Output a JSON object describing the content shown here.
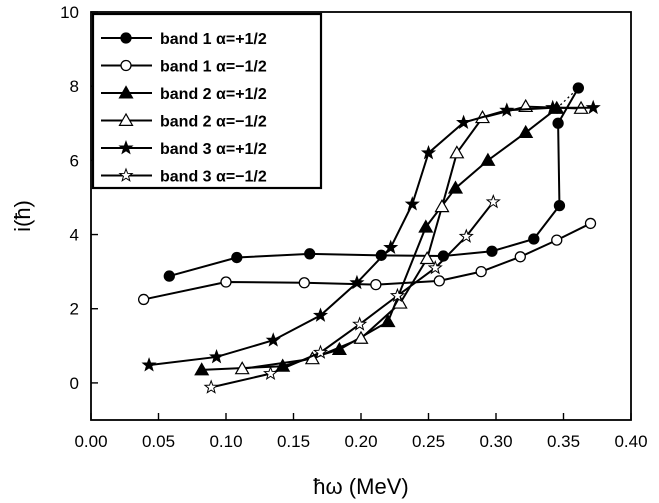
{
  "chart_data": {
    "type": "line",
    "xlabel": "ħω (MeV)",
    "ylabel": "i(ħ)",
    "xlim": [
      0.0,
      0.4
    ],
    "ylim": [
      -1,
      10
    ],
    "xticks": [
      "0.00",
      "0.05",
      "0.10",
      "0.15",
      "0.20",
      "0.25",
      "0.30",
      "0.35",
      "0.40"
    ],
    "yticks": [
      "0",
      "2",
      "4",
      "6",
      "8",
      "10"
    ],
    "legend_position": "top-left",
    "series": [
      {
        "name": "band 1 α=+1/2",
        "marker": "filled-circle",
        "points": [
          [
            0.058,
            2.88
          ],
          [
            0.108,
            3.38
          ],
          [
            0.162,
            3.48
          ],
          [
            0.215,
            3.44
          ],
          [
            0.261,
            3.42
          ],
          [
            0.297,
            3.55
          ],
          [
            0.328,
            3.88
          ],
          [
            0.347,
            4.78
          ],
          [
            0.346,
            7.0
          ],
          [
            0.361,
            7.95
          ]
        ]
      },
      {
        "name": "band 1 α=−1/2",
        "marker": "open-circle",
        "points": [
          [
            0.039,
            2.25
          ],
          [
            0.1,
            2.72
          ],
          [
            0.158,
            2.7
          ],
          [
            0.211,
            2.65
          ],
          [
            0.258,
            2.75
          ],
          [
            0.289,
            3.0
          ],
          [
            0.318,
            3.4
          ],
          [
            0.345,
            3.85
          ],
          [
            0.37,
            4.3
          ]
        ]
      },
      {
        "name": "band 2 α=+1/2",
        "marker": "filled-triangle",
        "points": [
          [
            0.082,
            0.35
          ],
          [
            0.142,
            0.45
          ],
          [
            0.184,
            0.9
          ],
          [
            0.22,
            1.65
          ],
          [
            0.248,
            4.2
          ],
          [
            0.27,
            5.25
          ],
          [
            0.294,
            6.0
          ],
          [
            0.322,
            6.75
          ],
          [
            0.345,
            7.4
          ]
        ]
      },
      {
        "name": "band 2 α=−1/2",
        "marker": "open-triangle",
        "points": [
          [
            0.112,
            0.38
          ],
          [
            0.164,
            0.65
          ],
          [
            0.2,
            1.2
          ],
          [
            0.229,
            2.15
          ],
          [
            0.249,
            3.35
          ],
          [
            0.26,
            4.75
          ],
          [
            0.271,
            6.2
          ],
          [
            0.29,
            7.15
          ],
          [
            0.322,
            7.45
          ],
          [
            0.363,
            7.4
          ]
        ]
      },
      {
        "name": "band 3 α=+1/2",
        "marker": "filled-star",
        "points": [
          [
            0.043,
            0.48
          ],
          [
            0.093,
            0.7
          ],
          [
            0.135,
            1.15
          ],
          [
            0.17,
            1.82
          ],
          [
            0.197,
            2.7
          ],
          [
            0.222,
            3.65
          ],
          [
            0.238,
            4.82
          ],
          [
            0.25,
            6.2
          ],
          [
            0.276,
            7.02
          ],
          [
            0.308,
            7.35
          ],
          [
            0.342,
            7.42
          ],
          [
            0.372,
            7.42
          ]
        ]
      },
      {
        "name": "band 3 α=−1/2",
        "marker": "open-star",
        "points": [
          [
            0.089,
            -0.12
          ],
          [
            0.133,
            0.25
          ],
          [
            0.17,
            0.82
          ],
          [
            0.199,
            1.58
          ],
          [
            0.227,
            2.35
          ],
          [
            0.255,
            3.1
          ],
          [
            0.278,
            3.95
          ],
          [
            0.298,
            4.88
          ]
        ]
      }
    ],
    "dotted_connector": [
      [
        0.345,
        7.4
      ],
      [
        0.361,
        7.95
      ]
    ],
    "dashed_connector": [
      [
        0.322,
        7.45
      ],
      [
        0.363,
        7.4
      ]
    ]
  }
}
